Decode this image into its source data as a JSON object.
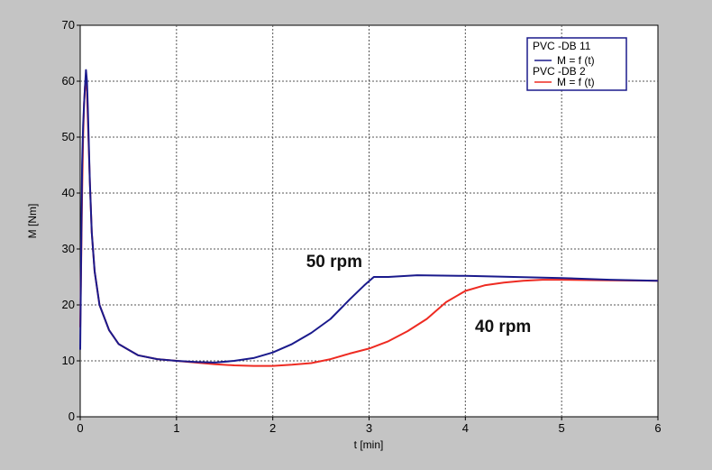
{
  "chart_data": {
    "type": "line",
    "title": "",
    "xlabel": "t [min]",
    "ylabel": "M [Nm]",
    "xlim": [
      0,
      6
    ],
    "ylim": [
      0,
      70
    ],
    "xticks": [
      0,
      1,
      2,
      3,
      4,
      5,
      6
    ],
    "yticks": [
      0,
      10,
      20,
      30,
      40,
      50,
      60,
      70
    ],
    "grid": true,
    "legend_position": "top-right",
    "series": [
      {
        "name": "M = f (t)",
        "group": "PVC -DB 11",
        "color": "#1a1a8c",
        "x": [
          0.0,
          0.01,
          0.02,
          0.03,
          0.04,
          0.05,
          0.06,
          0.07,
          0.08,
          0.1,
          0.12,
          0.15,
          0.2,
          0.3,
          0.4,
          0.5,
          0.6,
          0.8,
          1.0,
          1.2,
          1.4,
          1.6,
          1.8,
          2.0,
          2.2,
          2.4,
          2.6,
          2.8,
          2.95,
          3.05,
          3.2,
          3.5,
          4.0,
          4.5,
          5.0,
          5.5,
          6.0
        ],
        "y": [
          12,
          30,
          45,
          52,
          56,
          59,
          62,
          60,
          55,
          42,
          33,
          26,
          20,
          15.5,
          13,
          12,
          11,
          10.3,
          10,
          9.8,
          9.7,
          10,
          10.5,
          11.5,
          13,
          15,
          17.5,
          21,
          23.5,
          25,
          25,
          25.3,
          25.2,
          25,
          24.8,
          24.5,
          24.3
        ]
      },
      {
        "name": "M = f (t)",
        "group": "PVC -DB 2",
        "color": "#ee2b22",
        "x": [
          0.0,
          0.01,
          0.02,
          0.03,
          0.04,
          0.05,
          0.06,
          0.07,
          0.08,
          0.1,
          0.12,
          0.15,
          0.2,
          0.3,
          0.4,
          0.5,
          0.6,
          0.8,
          1.0,
          1.2,
          1.4,
          1.6,
          1.8,
          2.0,
          2.2,
          2.4,
          2.6,
          2.8,
          3.0,
          3.2,
          3.4,
          3.6,
          3.8,
          4.0,
          4.2,
          4.4,
          4.6,
          4.8,
          5.0,
          5.5,
          6.0
        ],
        "y": [
          16,
          28,
          40,
          50,
          56,
          59,
          60.5,
          58,
          53,
          42,
          33,
          26,
          20,
          15.5,
          13,
          12,
          11,
          10.3,
          10,
          9.7,
          9.4,
          9.2,
          9.1,
          9.1,
          9.3,
          9.6,
          10.3,
          11.3,
          12.2,
          13.5,
          15.3,
          17.5,
          20.5,
          22.5,
          23.5,
          24,
          24.3,
          24.5,
          24.5,
          24.4,
          24.3
        ]
      }
    ],
    "annotations": [
      {
        "text": "50 rpm",
        "x": 2.93,
        "y": 26.8
      },
      {
        "text": "40 rpm",
        "x": 4.1,
        "y": 15.2
      }
    ]
  },
  "legend": [
    {
      "group": "PVC -DB 11",
      "label": "M = f (t)",
      "color": "#1a1a8c"
    },
    {
      "group": "PVC -DB 2",
      "label": "M = f (t)",
      "color": "#ee2b22"
    }
  ],
  "colors": {
    "background": "#c4c4c4",
    "plot_area": "#ffffff",
    "grid": "#555555",
    "legend_border": "#1a1a8c"
  }
}
